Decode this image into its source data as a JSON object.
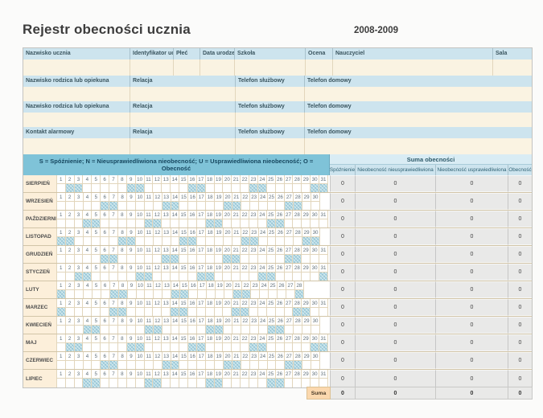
{
  "title": "Rejestr obecności ucznia",
  "school_year": "2008-2009",
  "student_header": {
    "labels": [
      "Nazwisko ucznia",
      "Identyfikator uc:",
      "Płeć",
      "Data urodzen",
      "Szkoła",
      "Ocena",
      "Nauczyciel",
      "Sala"
    ]
  },
  "contacts": {
    "rows": [
      {
        "name": "Nazwisko rodzica lub opiekuna",
        "relation": "Relacja",
        "phone_work": "Telefon służbowy",
        "phone_home": "Telefon domowy"
      },
      {
        "name": "Nazwisko rodzica lub opiekuna",
        "relation": "Relacja",
        "phone_work": "Telefon służbowy",
        "phone_home": "Telefon domowy"
      },
      {
        "name": "Kontakt alarmowy",
        "relation": "Relacja",
        "phone_work": "Telefon służbowy",
        "phone_home": "Telefon domowy"
      }
    ]
  },
  "legend": {
    "text": "S = Spóźnienie; N = Nieusprawiedliwiona nieobecność; U = Usprawiedliwiona nieobecność; O = Obecność"
  },
  "summary": {
    "title": "Suma obecności",
    "columns": [
      "Spóźnienie",
      "Nieobecność nieusprawiedliwiona",
      "Nieobecność usprawiedliwiona",
      "Obecność"
    ]
  },
  "months": [
    {
      "name": "SIERPIEŃ",
      "days": 31,
      "weekends": [
        2,
        3,
        9,
        10,
        16,
        17,
        23,
        24,
        30,
        31
      ],
      "totals": [
        "0",
        "0",
        "0",
        "0"
      ]
    },
    {
      "name": "WRZESIEŃ",
      "days": 30,
      "weekends": [
        6,
        7,
        13,
        14,
        20,
        21,
        27,
        28
      ],
      "totals": [
        "0",
        "0",
        "0",
        "0"
      ]
    },
    {
      "name": "PAŹDZIERNIK",
      "days": 31,
      "weekends": [
        4,
        5,
        11,
        12,
        18,
        19,
        25,
        26
      ],
      "totals": [
        "0",
        "0",
        "0",
        "0"
      ]
    },
    {
      "name": "LISTOPAD",
      "days": 30,
      "weekends": [
        1,
        2,
        8,
        9,
        15,
        16,
        22,
        23,
        29,
        30
      ],
      "totals": [
        "0",
        "0",
        "0",
        "0"
      ]
    },
    {
      "name": "GRUDZIEŃ",
      "days": 31,
      "weekends": [
        6,
        7,
        13,
        14,
        20,
        21,
        27,
        28
      ],
      "totals": [
        "0",
        "0",
        "0",
        "0"
      ]
    },
    {
      "name": "STYCZEŃ",
      "days": 31,
      "weekends": [
        3,
        4,
        10,
        11,
        17,
        18,
        24,
        25,
        31
      ],
      "totals": [
        "0",
        "0",
        "0",
        "0"
      ]
    },
    {
      "name": "LUTY",
      "days": 28,
      "weekends": [
        1,
        7,
        8,
        14,
        15,
        21,
        22,
        28
      ],
      "totals": [
        "0",
        "0",
        "0",
        "0"
      ]
    },
    {
      "name": "MARZEC",
      "days": 31,
      "weekends": [
        1,
        7,
        8,
        14,
        15,
        21,
        22,
        28,
        29
      ],
      "totals": [
        "0",
        "0",
        "0",
        "0"
      ]
    },
    {
      "name": "KWIECIEŃ",
      "days": 30,
      "weekends": [
        4,
        5,
        11,
        12,
        18,
        19,
        25,
        26
      ],
      "totals": [
        "0",
        "0",
        "0",
        "0"
      ]
    },
    {
      "name": "MAJ",
      "days": 31,
      "weekends": [
        2,
        3,
        9,
        10,
        16,
        17,
        23,
        24,
        30,
        31
      ],
      "totals": [
        "0",
        "0",
        "0",
        "0"
      ]
    },
    {
      "name": "CZERWIEC",
      "days": 30,
      "weekends": [
        6,
        7,
        13,
        14,
        20,
        21,
        27,
        28
      ],
      "totals": [
        "0",
        "0",
        "0",
        "0"
      ]
    },
    {
      "name": "LIPIEC",
      "days": 31,
      "weekends": [
        4,
        5,
        11,
        12,
        18,
        19,
        25,
        26
      ],
      "totals": [
        "0",
        "0",
        "0",
        "0"
      ]
    }
  ],
  "footer": {
    "label": "Suma",
    "totals": [
      "0",
      "0",
      "0",
      "0"
    ]
  },
  "colors": {
    "blue": "#cde4ee",
    "legendblue": "#7fc3d8",
    "cream": "#faf3e2",
    "mlabel": "#fcefda",
    "hatch": "#aed7e3",
    "sumbg": "#e9e9e8",
    "orange": "#fbd8ae",
    "grid": "#e2d6bc",
    "griddark": "#d2c5a8",
    "headtext": "#3a555f",
    "legendtext": "#16475f"
  }
}
